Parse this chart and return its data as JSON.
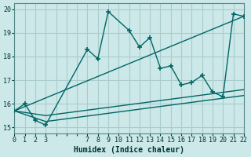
{
  "xlabel": "Humidex (Indice chaleur)",
  "background_color": "#cce8e8",
  "grid_color": "#aacccc",
  "line_color": "#006666",
  "xlim": [
    0,
    22
  ],
  "ylim": [
    14.75,
    20.25
  ],
  "xtick_positions": [
    0,
    1,
    2,
    3,
    4,
    5,
    6,
    7,
    8,
    9,
    10,
    11,
    12,
    13,
    14,
    15,
    16,
    17,
    18,
    19,
    20,
    21,
    22
  ],
  "xtick_labels": [
    "0",
    "1",
    "2",
    "3",
    "",
    "",
    "",
    "7",
    "8",
    "9",
    "10",
    "11",
    "12",
    "13",
    "14",
    "15",
    "16",
    "17",
    "18",
    "19",
    "20",
    "21",
    "22"
  ],
  "ytick_positions": [
    15,
    16,
    17,
    18,
    19,
    20
  ],
  "ytick_labels": [
    "15",
    "16",
    "17",
    "18",
    "19",
    "20"
  ],
  "series1_x": [
    0,
    1,
    2,
    3,
    7,
    8,
    9,
    11,
    12,
    13,
    14,
    15,
    16,
    17,
    18,
    19,
    20,
    21,
    22
  ],
  "series1_y": [
    15.7,
    16.0,
    15.3,
    15.1,
    18.3,
    17.9,
    19.9,
    19.1,
    18.4,
    18.8,
    17.5,
    17.6,
    16.8,
    16.9,
    17.2,
    16.5,
    16.3,
    19.8,
    19.7
  ],
  "series2_x": [
    0,
    22
  ],
  "series2_y": [
    15.7,
    19.7
  ],
  "series3_x": [
    0,
    3,
    22
  ],
  "series3_y": [
    15.7,
    15.25,
    16.35
  ],
  "series4_x": [
    0,
    3,
    22
  ],
  "series4_y": [
    15.7,
    15.5,
    16.6
  ]
}
